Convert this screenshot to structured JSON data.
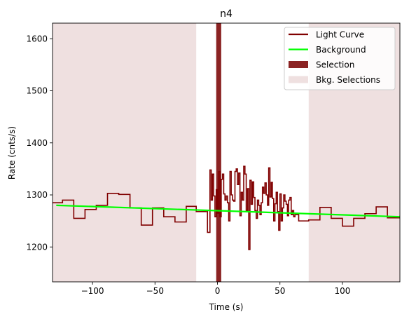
{
  "chart_data": {
    "type": "line",
    "title": "n4",
    "xlabel": "Time (s)",
    "ylabel": "Rate (cnts/s)",
    "xlim": [
      -132,
      146
    ],
    "ylim": [
      1133,
      1630
    ],
    "xticks": [
      -100,
      -50,
      0,
      50,
      100
    ],
    "xtick_labels": [
      "−100",
      "−50",
      "0",
      "50",
      "100"
    ],
    "yticks": [
      1200,
      1300,
      1400,
      1500,
      1600
    ],
    "ytick_labels": [
      "1200",
      "1300",
      "1400",
      "1500",
      "1600"
    ],
    "grid": false,
    "legend_position": "top-right",
    "colors": {
      "light_curve": "#800000",
      "background": "#00ff00",
      "selection": "#8b2323",
      "bkg_selection": "#efe0e0"
    },
    "legend": [
      {
        "label": "Light Curve",
        "kind": "line",
        "color": "#800000"
      },
      {
        "label": "Background",
        "kind": "line",
        "color": "#00ff00"
      },
      {
        "label": "Selection",
        "kind": "patch",
        "color": "#8b2323"
      },
      {
        "label": "Bkg. Selections",
        "kind": "patch",
        "color": "#efe0e0"
      }
    ],
    "bkg_selections": [
      [
        -132,
        -17
      ],
      [
        73,
        146
      ]
    ],
    "selection": [
      -1,
      3
    ],
    "background_line": {
      "x": [
        -129,
        146
      ],
      "y": [
        1280,
        1258
      ]
    },
    "light_curve": {
      "edges": [
        -132,
        -124,
        -115,
        -106,
        -97,
        -88,
        -79,
        -70,
        -61,
        -52,
        -43,
        -34,
        -25,
        -17,
        -9,
        -8,
        -6,
        -5,
        -4,
        -3,
        -2,
        -1,
        0,
        1,
        2,
        3,
        4,
        5,
        6,
        7,
        8,
        9,
        10,
        11,
        12,
        13,
        14,
        15,
        16,
        17,
        18,
        19,
        20,
        21,
        22,
        23,
        24,
        25,
        26,
        27,
        28,
        29,
        30,
        31,
        32,
        33,
        34,
        35,
        36,
        37,
        38,
        39,
        40,
        41,
        42,
        43,
        44,
        45,
        46,
        47,
        48,
        49,
        50,
        51,
        52,
        53,
        54,
        55,
        56,
        57,
        58,
        59,
        60,
        61,
        62,
        65,
        73,
        82,
        91,
        100,
        109,
        118,
        127,
        136,
        146
      ],
      "values": [
        1285,
        1290,
        1255,
        1272,
        1280,
        1303,
        1301,
        1275,
        1242,
        1275,
        1258,
        1248,
        1278,
        1268,
        1270,
        1228,
        1348,
        1290,
        1340,
        1298,
        1258,
        1310,
        1265,
        1345,
        1258,
        1330,
        1340,
        1302,
        1290,
        1298,
        1285,
        1250,
        1345,
        1300,
        1290,
        1288,
        1345,
        1350,
        1320,
        1342,
        1260,
        1305,
        1290,
        1355,
        1340,
        1270,
        1312,
        1195,
        1328,
        1282,
        1325,
        1295,
        1270,
        1255,
        1290,
        1280,
        1262,
        1285,
        1315,
        1303,
        1323,
        1300,
        1280,
        1352,
        1296,
        1324,
        1293,
        1250,
        1283,
        1305,
        1268,
        1232,
        1302,
        1250,
        1275,
        1300,
        1288,
        1282,
        1260,
        1290,
        1295,
        1262,
        1270,
        1258,
        1262,
        1250,
        1252,
        1276,
        1255,
        1240,
        1255,
        1264,
        1277,
        1256,
        1260
      ]
    }
  }
}
